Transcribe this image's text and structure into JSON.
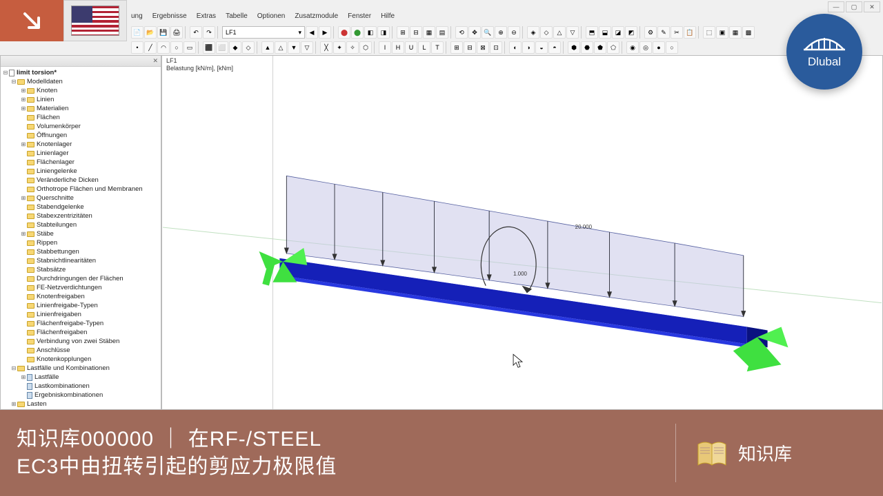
{
  "badges": {
    "logo_text": "Dlubal"
  },
  "window": {
    "menu": [
      "ung",
      "Ergebnisse",
      "Extras",
      "Tabelle",
      "Optionen",
      "Zusatzmodule",
      "Fenster",
      "Hilfe"
    ],
    "combo_loadcase": "LF1",
    "winctrl": [
      "—",
      "▢",
      "✕"
    ]
  },
  "navigator": {
    "header": "",
    "root": "limit torsion*",
    "group1": "Modelldaten",
    "items1": [
      "Knoten",
      "Linien",
      "Materialien",
      "Flächen",
      "Volumenkörper",
      "Öffnungen",
      "Knotenlager",
      "Linienlager",
      "Flächenlager",
      "Liniengelenke",
      "Veränderliche Dicken",
      "Orthotrope Flächen und Membranen",
      "Querschnitte",
      "Stabendgelenke",
      "Stabexzentrizitäten",
      "Stabteilungen",
      "Stäbe",
      "Rippen",
      "Stabbettungen",
      "Stabnichtlinearitäten",
      "Stabsätze",
      "Durchdringungen der Flächen",
      "FE-Netzverdichtungen",
      "Knotenfreigaben",
      "Linienfreigabe-Typen",
      "Linienfreigaben",
      "Flächenfreigabe-Typen",
      "Flächenfreigaben",
      "Verbindung von zwei Stäben",
      "Anschlüsse",
      "Knotenkopplungen"
    ],
    "group2": "Lastfälle und Kombinationen",
    "items2": [
      "Lastfälle",
      "Lastkombinationen",
      "Ergebniskombinationen"
    ],
    "group3": "Lasten"
  },
  "viewport": {
    "label_line1": "LF1",
    "label_line2": "Belastung [kN/m], [kNm]",
    "load_value": "20.000",
    "moment_value": "1.000",
    "style": {
      "beam_color": "#1520b8",
      "beam_top_color": "#2838e0",
      "load_fill": "#c8c8e8",
      "load_fill_opacity": 0.55,
      "load_stroke": "#5560a0",
      "support_color": "#3fe040",
      "axis_color": "#d0d0d0",
      "axis_x_color": "#c0e0c0",
      "moment_arc_color": "#333"
    }
  },
  "banner": {
    "line1": "知识库000000 ｜ 在RF-/STEEL",
    "line2": "EC3中由扭转引起的剪应力极限值",
    "right_label": "知识库",
    "bg_color": "#9f6a5a"
  }
}
